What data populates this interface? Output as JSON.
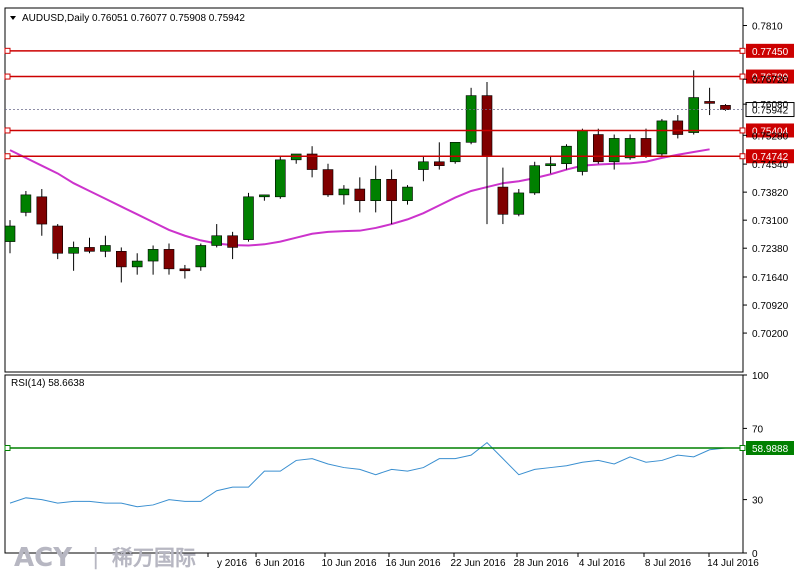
{
  "header": {
    "symbol_line": "AUDUSD,Daily  0.76051 0.76077 0.75908 0.75942",
    "dropdown_icon": "triangle-down-icon"
  },
  "watermark": {
    "brand": "ACY",
    "separator": "|",
    "chinese": "稀万国际"
  },
  "colors": {
    "bull": "#008000",
    "bear": "#800000",
    "level_line": "#cc0000",
    "ma": "#cc33cc",
    "rsi_line": "#3a8fd0",
    "rsi_level": "#008000",
    "current_price_line": "#6a6a8a"
  },
  "chart_data": [
    {
      "type": "candlestick",
      "title": "AUDUSD,Daily",
      "ohlc_header": {
        "open": 0.76051,
        "high": 0.76077,
        "low": 0.75908,
        "close": 0.75942
      },
      "ylim": [
        0.692,
        0.7855
      ],
      "y_ticks": [
        "0.7810",
        "0.76720",
        "0.76080",
        "0.75280",
        "0.74540",
        "0.73820",
        "0.73100",
        "0.72380",
        "0.71640",
        "0.70920",
        "0.70200"
      ],
      "x_tick_labels": [
        "y 2016",
        "6 Jun 2016",
        "10 Jun 2016",
        "16 Jun 2016",
        "22 Jun 2016",
        "28 Jun 2016",
        "4 Jul 2016",
        "8 Jul 2016",
        "14 Jul 2016"
      ],
      "horizontal_levels": [
        {
          "label": "0.77450",
          "value": 0.7745
        },
        {
          "label": "0.76789",
          "value": 0.76789
        },
        {
          "label": "0.75404",
          "value": 0.75404
        },
        {
          "label": "0.74742",
          "value": 0.74742
        }
      ],
      "current_price": {
        "label": "0.75942",
        "value": 0.75942
      },
      "candles": [
        {
          "o": 0.7255,
          "h": 0.731,
          "l": 0.7225,
          "c": 0.7295
        },
        {
          "o": 0.733,
          "h": 0.7385,
          "l": 0.732,
          "c": 0.7375
        },
        {
          "o": 0.737,
          "h": 0.739,
          "l": 0.727,
          "c": 0.73
        },
        {
          "o": 0.7295,
          "h": 0.73,
          "l": 0.721,
          "c": 0.7225
        },
        {
          "o": 0.7225,
          "h": 0.7255,
          "l": 0.718,
          "c": 0.724
        },
        {
          "o": 0.724,
          "h": 0.7265,
          "l": 0.7225,
          "c": 0.723
        },
        {
          "o": 0.723,
          "h": 0.727,
          "l": 0.7215,
          "c": 0.7245
        },
        {
          "o": 0.723,
          "h": 0.724,
          "l": 0.715,
          "c": 0.719
        },
        {
          "o": 0.719,
          "h": 0.7225,
          "l": 0.717,
          "c": 0.7205
        },
        {
          "o": 0.7205,
          "h": 0.7245,
          "l": 0.717,
          "c": 0.7235
        },
        {
          "o": 0.7235,
          "h": 0.725,
          "l": 0.717,
          "c": 0.7185
        },
        {
          "o": 0.7185,
          "h": 0.7195,
          "l": 0.716,
          "c": 0.718
        },
        {
          "o": 0.719,
          "h": 0.725,
          "l": 0.718,
          "c": 0.7245
        },
        {
          "o": 0.7245,
          "h": 0.73,
          "l": 0.724,
          "c": 0.727
        },
        {
          "o": 0.727,
          "h": 0.728,
          "l": 0.721,
          "c": 0.724
        },
        {
          "o": 0.726,
          "h": 0.738,
          "l": 0.7255,
          "c": 0.737
        },
        {
          "o": 0.737,
          "h": 0.7375,
          "l": 0.736,
          "c": 0.7375
        },
        {
          "o": 0.737,
          "h": 0.7475,
          "l": 0.7365,
          "c": 0.7465
        },
        {
          "o": 0.7465,
          "h": 0.748,
          "l": 0.7455,
          "c": 0.748
        },
        {
          "o": 0.748,
          "h": 0.75,
          "l": 0.742,
          "c": 0.744
        },
        {
          "o": 0.744,
          "h": 0.7455,
          "l": 0.737,
          "c": 0.7375
        },
        {
          "o": 0.7375,
          "h": 0.74,
          "l": 0.735,
          "c": 0.739
        },
        {
          "o": 0.739,
          "h": 0.742,
          "l": 0.733,
          "c": 0.736
        },
        {
          "o": 0.736,
          "h": 0.745,
          "l": 0.733,
          "c": 0.7415
        },
        {
          "o": 0.7415,
          "h": 0.744,
          "l": 0.73,
          "c": 0.736
        },
        {
          "o": 0.736,
          "h": 0.74,
          "l": 0.735,
          "c": 0.7395
        },
        {
          "o": 0.744,
          "h": 0.7475,
          "l": 0.741,
          "c": 0.746
        },
        {
          "o": 0.746,
          "h": 0.751,
          "l": 0.744,
          "c": 0.745
        },
        {
          "o": 0.746,
          "h": 0.7505,
          "l": 0.7455,
          "c": 0.751
        },
        {
          "o": 0.751,
          "h": 0.765,
          "l": 0.7505,
          "c": 0.763
        },
        {
          "o": 0.763,
          "h": 0.7665,
          "l": 0.73,
          "c": 0.7475
        },
        {
          "o": 0.7395,
          "h": 0.7445,
          "l": 0.73,
          "c": 0.7325
        },
        {
          "o": 0.7325,
          "h": 0.739,
          "l": 0.732,
          "c": 0.738
        },
        {
          "o": 0.738,
          "h": 0.746,
          "l": 0.7375,
          "c": 0.745
        },
        {
          "o": 0.745,
          "h": 0.7475,
          "l": 0.743,
          "c": 0.7455
        },
        {
          "o": 0.7455,
          "h": 0.7505,
          "l": 0.744,
          "c": 0.75
        },
        {
          "o": 0.7435,
          "h": 0.7545,
          "l": 0.7425,
          "c": 0.754
        },
        {
          "o": 0.753,
          "h": 0.7545,
          "l": 0.7455,
          "c": 0.746
        },
        {
          "o": 0.746,
          "h": 0.753,
          "l": 0.744,
          "c": 0.752
        },
        {
          "o": 0.747,
          "h": 0.753,
          "l": 0.7465,
          "c": 0.752
        },
        {
          "o": 0.752,
          "h": 0.7545,
          "l": 0.747,
          "c": 0.7475
        },
        {
          "o": 0.748,
          "h": 0.757,
          "l": 0.7475,
          "c": 0.7565
        },
        {
          "o": 0.7565,
          "h": 0.758,
          "l": 0.752,
          "c": 0.753
        },
        {
          "o": 0.7535,
          "h": 0.7695,
          "l": 0.753,
          "c": 0.7625
        },
        {
          "o": 0.7615,
          "h": 0.765,
          "l": 0.758,
          "c": 0.761
        },
        {
          "o": 0.7605,
          "h": 0.7608,
          "l": 0.7591,
          "c": 0.7594
        }
      ],
      "moving_average": [
        0.749,
        0.747,
        0.745,
        0.743,
        0.7405,
        0.7385,
        0.7365,
        0.7345,
        0.7325,
        0.7305,
        0.7285,
        0.727,
        0.7258,
        0.725,
        0.7246,
        0.7245,
        0.7248,
        0.7255,
        0.7265,
        0.7275,
        0.728,
        0.7282,
        0.7283,
        0.729,
        0.73,
        0.7312,
        0.7328,
        0.7348,
        0.7368,
        0.7385,
        0.7395,
        0.7405,
        0.741,
        0.7418,
        0.7428,
        0.744,
        0.745,
        0.7453,
        0.7455,
        0.7456,
        0.746,
        0.747,
        0.7478,
        0.7485,
        0.7492
      ],
      "ma_offset": 1
    },
    {
      "type": "line",
      "title": "RSI(14) 58.6638",
      "ylim": [
        0,
        100
      ],
      "y_ticks": [
        "100",
        "70",
        "30",
        "0"
      ],
      "level": {
        "label": "58.9888",
        "value": 58.9888
      },
      "values": [
        28,
        31,
        30,
        28,
        29,
        29,
        28,
        28,
        26,
        27,
        30,
        29,
        29,
        35,
        37,
        37,
        46,
        46,
        52,
        53,
        50,
        48,
        47,
        44,
        47,
        46,
        48,
        53,
        53,
        55,
        62,
        53,
        44,
        47,
        48,
        49,
        51,
        52,
        50,
        54,
        51,
        52,
        55,
        54,
        58,
        59
      ]
    }
  ]
}
